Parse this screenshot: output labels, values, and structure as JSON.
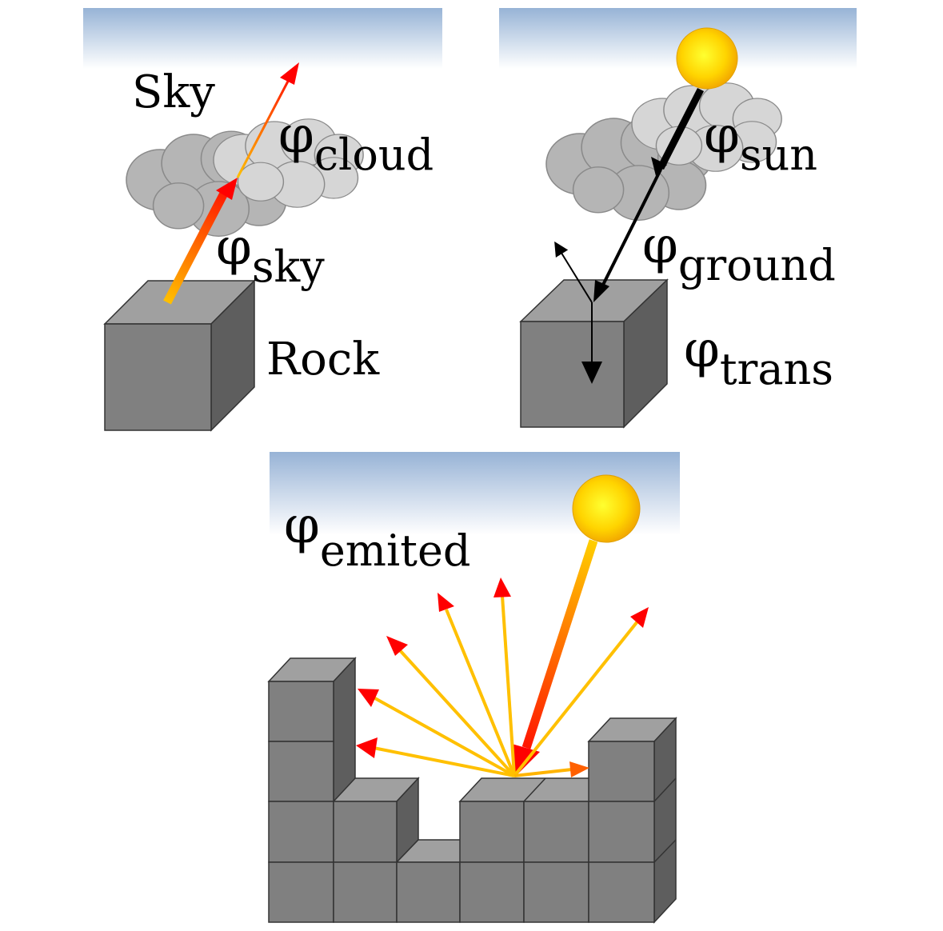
{
  "colors": {
    "sky_top": "#97b3d6",
    "cube_front": "#808080",
    "cube_top": "#a0a0a0",
    "cube_side": "#5e5e5e",
    "cloud_dark": "#b5b5b5",
    "cloud_light": "#d8d8d8",
    "sun": "#ffd700",
    "arrow_red": "#ff0000",
    "arrow_orange": "#ffb400",
    "outline": "#333333"
  },
  "panel_sky": {
    "sky_label": "Sky",
    "rock_label": "Rock",
    "phi_cloud": {
      "symbol": "φ",
      "sub": "cloud"
    },
    "phi_sky": {
      "symbol": "φ",
      "sub": "sky"
    }
  },
  "panel_sun": {
    "phi_sun": {
      "symbol": "φ",
      "sub": "sun"
    },
    "phi_ground": {
      "symbol": "φ",
      "sub": "ground"
    },
    "phi_trans": {
      "symbol": "φ",
      "sub": "trans"
    }
  },
  "panel_emit": {
    "phi_emited": {
      "symbol": "φ",
      "sub": "emited"
    }
  }
}
